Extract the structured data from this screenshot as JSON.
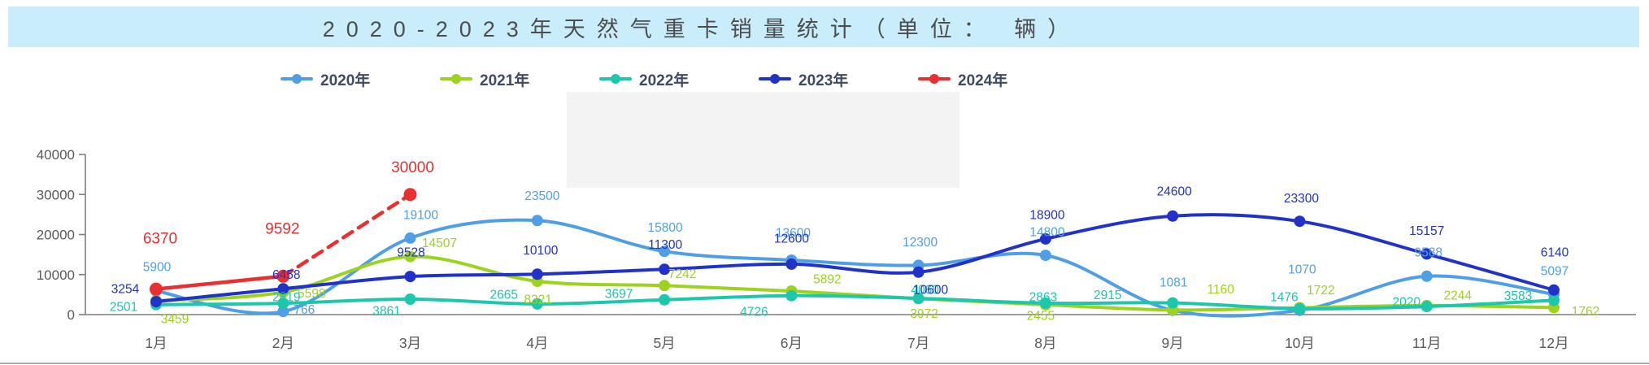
{
  "header": {
    "title": "2020-2023年天然气重卡销量统计（单位： 辆）"
  },
  "chart_data": {
    "type": "line",
    "title": "2020-2023年天然气重卡销量统计（单位：辆）",
    "unit": "辆",
    "categories": [
      "1月",
      "2月",
      "3月",
      "4月",
      "5月",
      "6月",
      "7月",
      "8月",
      "9月",
      "10月",
      "11月",
      "12月"
    ],
    "ylim": [
      0,
      40000
    ],
    "ytick_interval": 10000,
    "ytick_labels": [
      "0",
      "10000",
      "20000",
      "30000",
      "40000"
    ],
    "grid": false,
    "legend_position": "top",
    "smooth": true,
    "series": [
      {
        "name": "2020年",
        "color": "#4f9fe6",
        "dashed": false,
        "values": [
          5900,
          766,
          19100,
          23500,
          15800,
          13600,
          12300,
          14800,
          1081,
          1070,
          9588,
          5097
        ],
        "label_offsets": [
          [
            1,
            -30
          ],
          [
            26,
            -3
          ],
          [
            13,
            -29
          ],
          [
            6,
            -31
          ],
          [
            1,
            -30
          ],
          [
            2,
            -34
          ],
          [
            2,
            -29
          ],
          [
            2,
            -29
          ],
          [
            1,
            -35
          ],
          [
            3,
            -51
          ],
          [
            2,
            -30
          ],
          [
            1,
            -29
          ]
        ],
        "label_size": 15.5
      },
      {
        "name": "2021年",
        "color": "#9cd31c",
        "dashed": false,
        "values": [
          3459,
          5598,
          14507,
          8321,
          7242,
          5892,
          3972,
          2455,
          1160,
          1722,
          2244,
          1762
        ],
        "label_offsets": [
          [
            23,
            22
          ],
          [
            35,
            1
          ],
          [
            36,
            -17
          ],
          [
            1,
            22
          ],
          [
            22,
            -15
          ],
          [
            44,
            -15
          ],
          [
            7,
            18
          ],
          [
            -6,
            13
          ],
          [
            59,
            -26
          ],
          [
            26,
            -22
          ],
          [
            38,
            -13
          ],
          [
            39,
            4
          ]
        ],
        "label_size": 15.5
      },
      {
        "name": "2022年",
        "color": "#1cc7ac",
        "dashed": false,
        "values": [
          2501,
          2819,
          3861,
          2665,
          3697,
          4726,
          4060,
          2863,
          2915,
          1476,
          2020,
          3583
        ],
        "label_offsets": [
          [
            -40,
            2
          ],
          [
            4,
            -8
          ],
          [
            -29,
            14
          ],
          [
            -41,
            -12
          ],
          [
            -56,
            -8
          ],
          [
            -46,
            19
          ],
          [
            8,
            -11
          ],
          [
            -3,
            -8
          ],
          [
            -80,
            -10
          ],
          [
            -19,
            -15
          ],
          [
            -25,
            -6
          ],
          [
            -44,
            -6
          ]
        ],
        "label_size": 15.5
      },
      {
        "name": "2023年",
        "color": "#2132c8",
        "dashed": false,
        "values": [
          3254,
          6458,
          9528,
          10100,
          11300,
          12600,
          10600,
          18900,
          24600,
          23300,
          15157,
          6140
        ],
        "label_offsets": [
          [
            -38,
            -16
          ],
          [
            4,
            -18
          ],
          [
            1,
            -30
          ],
          [
            4,
            -30
          ],
          [
            1,
            -31
          ],
          [
            0,
            -32
          ],
          [
            15,
            21
          ],
          [
            2,
            -30
          ],
          [
            2,
            -31
          ],
          [
            2,
            -29
          ],
          [
            0,
            -29
          ],
          [
            1,
            -47
          ]
        ],
        "label_size": 15.5
      },
      {
        "name": "2024年",
        "color": "#e93030",
        "dashed": false,
        "dash_from": 1,
        "values": [
          6370,
          9592,
          30000,
          null,
          null,
          null,
          null,
          null,
          null,
          null,
          null,
          null
        ],
        "label_offsets": [
          [
            5,
            -63
          ],
          [
            -1,
            -59
          ],
          [
            3,
            -34
          ]
        ],
        "label_size": 19
      }
    ]
  }
}
